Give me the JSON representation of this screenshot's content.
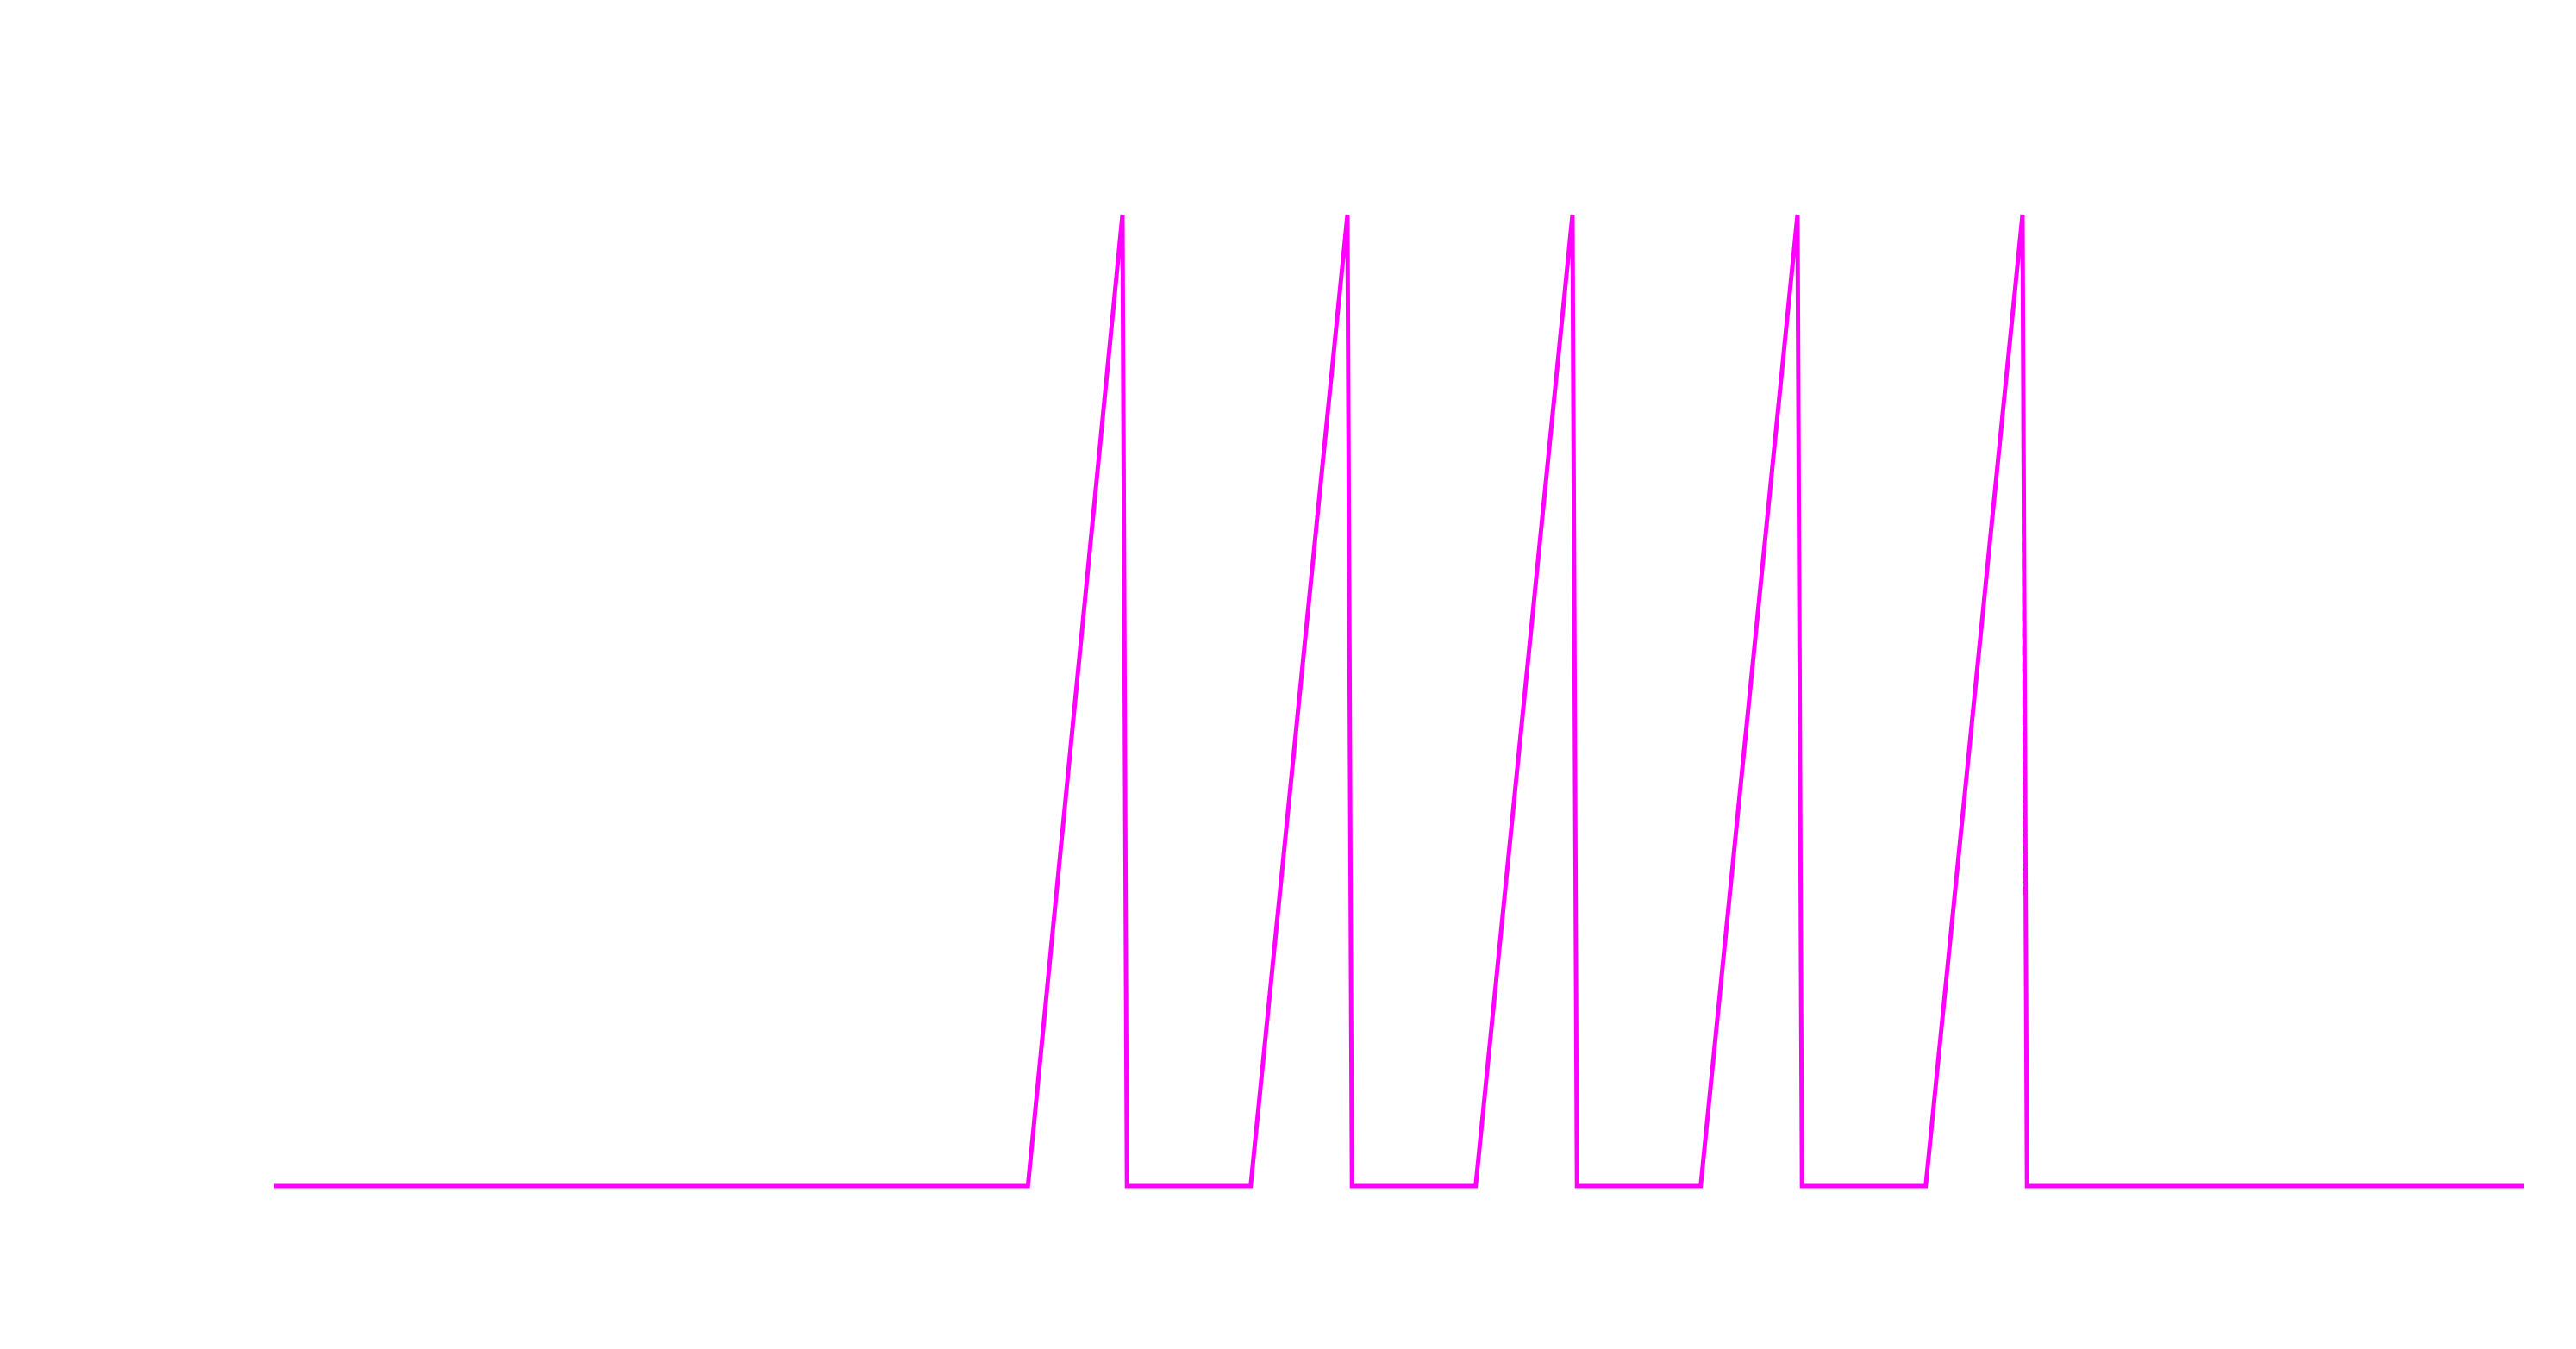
{
  "chart_data": {
    "type": "line",
    "title": "",
    "xlabel": "",
    "ylabel": "",
    "grid": false,
    "legend": "none",
    "xlim": [
      0,
      100
    ],
    "ylim": [
      0,
      1
    ],
    "series": [
      {
        "color": "#ff00ff",
        "style": "solid",
        "points": [
          [
            0,
            0
          ],
          [
            33.5,
            0
          ],
          [
            37.7,
            1
          ],
          [
            37.9,
            0
          ],
          [
            43.4,
            0
          ],
          [
            47.7,
            1
          ],
          [
            47.9,
            0
          ],
          [
            53.4,
            0
          ],
          [
            57.7,
            1
          ],
          [
            57.9,
            0
          ],
          [
            63.4,
            0
          ],
          [
            67.7,
            1
          ],
          [
            67.9,
            0
          ],
          [
            73.4,
            0
          ],
          [
            77.7,
            1
          ],
          [
            77.9,
            0
          ],
          [
            100,
            0
          ]
        ]
      },
      {
        "color": "#ff00ff",
        "style": "dashed",
        "points": [
          [
            77.7,
            1
          ],
          [
            77.8,
            0.3
          ]
        ]
      }
    ]
  }
}
